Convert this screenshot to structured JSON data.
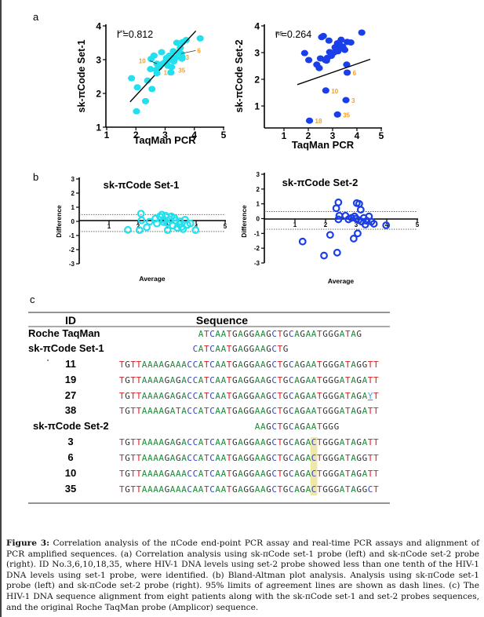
{
  "panels": {
    "a": "a",
    "b": "b",
    "c": "c"
  },
  "chart_data": [
    {
      "id": "a-left",
      "type": "scatter",
      "title": "",
      "xlabel": "TaqMan PCR",
      "ylabel": "sk-πCode Set-1",
      "xlim": [
        1,
        5
      ],
      "ylim": [
        1,
        4
      ],
      "xticks": [
        "1",
        "2",
        "3",
        "4",
        "5"
      ],
      "yticks": [
        "1",
        "2",
        "3",
        "4"
      ],
      "annotation": {
        "significance": "***",
        "r": "r =0.812"
      },
      "color": "#22E0EE",
      "regression": {
        "x": [
          1.8,
          4.05
        ],
        "y": [
          1.75,
          3.85
        ]
      },
      "points": [
        {
          "x": 2.02,
          "y": 1.47
        },
        {
          "x": 1.85,
          "y": 2.45
        },
        {
          "x": 2.05,
          "y": 2.18
        },
        {
          "x": 2.33,
          "y": 1.77
        },
        {
          "x": 2.55,
          "y": 2.13
        },
        {
          "x": 2.4,
          "y": 2.38
        },
        {
          "x": 2.5,
          "y": 2.72
        },
        {
          "x": 2.52,
          "y": 3.02
        },
        {
          "x": 2.62,
          "y": 3.12
        },
        {
          "x": 2.75,
          "y": 2.85
        },
        {
          "x": 2.8,
          "y": 2.78
        },
        {
          "x": 2.88,
          "y": 3.22
        },
        {
          "x": 2.92,
          "y": 2.88
        },
        {
          "x": 3.02,
          "y": 2.95
        },
        {
          "x": 3.1,
          "y": 2.82
        },
        {
          "x": 3.15,
          "y": 3.12
        },
        {
          "x": 3.22,
          "y": 2.78
        },
        {
          "x": 3.28,
          "y": 3.25
        },
        {
          "x": 3.35,
          "y": 3.05
        },
        {
          "x": 3.4,
          "y": 3.5
        },
        {
          "x": 3.45,
          "y": 3.2
        },
        {
          "x": 3.52,
          "y": 3.35
        },
        {
          "x": 3.58,
          "y": 3.08
        },
        {
          "x": 3.6,
          "y": 3.52
        },
        {
          "x": 3.72,
          "y": 3.58
        },
        {
          "x": 4.2,
          "y": 3.63
        },
        {
          "x": 3.3,
          "y": 2.95
        },
        {
          "x": 3.05,
          "y": 3.05
        },
        {
          "x": 2.7,
          "y": 2.7
        },
        {
          "x": 3.18,
          "y": 3.0
        }
      ],
      "labeled_points": [
        {
          "id": "6",
          "x": 3.55,
          "y": 3.18,
          "label_x": 4.1,
          "label_y": 3.2
        },
        {
          "id": "3",
          "x": 3.58,
          "y": 3.03,
          "label_x": 3.7,
          "label_y": 3.0
        },
        {
          "id": "10",
          "x": 2.72,
          "y": 2.88,
          "label_x": 2.15,
          "label_y": 2.9
        },
        {
          "id": "18",
          "x": 2.72,
          "y": 2.6,
          "label_x": 2.95,
          "label_y": 2.55
        },
        {
          "id": "35",
          "x": 3.2,
          "y": 2.62,
          "label_x": 3.45,
          "label_y": 2.62
        }
      ],
      "label_color": "#F0A030"
    },
    {
      "id": "a-right",
      "type": "scatter",
      "title": "",
      "xlabel": "TaqMan PCR",
      "ylabel": "sk-πCode Set-2",
      "xlim": [
        0.2,
        5
      ],
      "ylim": [
        0.2,
        4
      ],
      "xticks": [
        "1",
        "2",
        "3",
        "4",
        "5"
      ],
      "yticks": [
        "1",
        "2",
        "3",
        "4"
      ],
      "annotation": {
        "significance": "ns",
        "r": "r =0.264"
      },
      "color": "#1A3FE8",
      "regression": {
        "x": [
          1.55,
          4.55
        ],
        "y": [
          1.8,
          2.75
        ]
      },
      "points": [
        {
          "x": 1.85,
          "y": 2.98
        },
        {
          "x": 2.02,
          "y": 2.72
        },
        {
          "x": 2.35,
          "y": 2.55
        },
        {
          "x": 2.45,
          "y": 2.42
        },
        {
          "x": 2.5,
          "y": 2.78
        },
        {
          "x": 2.55,
          "y": 3.58
        },
        {
          "x": 2.62,
          "y": 3.62
        },
        {
          "x": 2.7,
          "y": 2.72
        },
        {
          "x": 2.78,
          "y": 2.8
        },
        {
          "x": 2.85,
          "y": 3.45
        },
        {
          "x": 2.88,
          "y": 3.02
        },
        {
          "x": 2.95,
          "y": 2.88
        },
        {
          "x": 3.05,
          "y": 3.0
        },
        {
          "x": 3.1,
          "y": 3.2
        },
        {
          "x": 3.15,
          "y": 3.05
        },
        {
          "x": 3.2,
          "y": 3.35
        },
        {
          "x": 3.25,
          "y": 3.15
        },
        {
          "x": 3.3,
          "y": 3.28
        },
        {
          "x": 3.35,
          "y": 3.48
        },
        {
          "x": 3.42,
          "y": 3.22
        },
        {
          "x": 3.5,
          "y": 3.1
        },
        {
          "x": 3.6,
          "y": 3.4
        },
        {
          "x": 3.75,
          "y": 3.38
        },
        {
          "x": 4.2,
          "y": 3.75
        },
        {
          "x": 3.58,
          "y": 2.55
        },
        {
          "x": 3.22,
          "y": 3.05
        },
        {
          "x": 2.75,
          "y": 2.7
        }
      ],
      "labeled_points": [
        {
          "id": "6",
          "x": 3.6,
          "y": 2.25
        },
        {
          "id": "10",
          "x": 2.72,
          "y": 1.58
        },
        {
          "id": "3",
          "x": 3.55,
          "y": 1.22
        },
        {
          "id": "35",
          "x": 3.2,
          "y": 0.68
        },
        {
          "id": "18",
          "x": 2.05,
          "y": 0.45
        }
      ],
      "label_color": "#F0A030"
    },
    {
      "id": "b-left",
      "type": "scatter",
      "title": "sk-πCode Set-1",
      "xlabel": "Average",
      "ylabel": "Difference",
      "xlim": [
        0,
        5
      ],
      "ylim": [
        -3,
        3
      ],
      "xticks": [
        "1",
        "2",
        "3",
        "4",
        "5"
      ],
      "yticks": [
        "3",
        "2",
        "1",
        "0",
        "-1",
        "-2",
        "-3"
      ],
      "limits_of_agreement": [
        0.48,
        -0.72
      ],
      "color": "#22E0EE",
      "points": [
        {
          "x": 1.65,
          "y": -0.6
        },
        {
          "x": 2.05,
          "y": -0.62
        },
        {
          "x": 2.1,
          "y": 0.55
        },
        {
          "x": 2.12,
          "y": 0.08
        },
        {
          "x": 2.3,
          "y": -0.42
        },
        {
          "x": 2.4,
          "y": -0.02
        },
        {
          "x": 2.6,
          "y": 0.2
        },
        {
          "x": 2.65,
          "y": -0.15
        },
        {
          "x": 2.75,
          "y": 0.35
        },
        {
          "x": 2.82,
          "y": 0.48
        },
        {
          "x": 2.9,
          "y": 0.1
        },
        {
          "x": 2.95,
          "y": 0.4
        },
        {
          "x": 3.0,
          "y": -0.1
        },
        {
          "x": 3.02,
          "y": -0.62
        },
        {
          "x": 3.1,
          "y": 0.15
        },
        {
          "x": 3.15,
          "y": 0.35
        },
        {
          "x": 3.2,
          "y": -0.3
        },
        {
          "x": 3.3,
          "y": 0.05
        },
        {
          "x": 3.35,
          "y": -0.45
        },
        {
          "x": 3.42,
          "y": -0.2
        },
        {
          "x": 3.5,
          "y": -0.4
        },
        {
          "x": 3.55,
          "y": -0.55
        },
        {
          "x": 3.62,
          "y": 0.12
        },
        {
          "x": 3.7,
          "y": -0.25
        },
        {
          "x": 3.8,
          "y": -0.15
        },
        {
          "x": 3.98,
          "y": -0.62
        },
        {
          "x": 2.88,
          "y": -0.05
        },
        {
          "x": 3.25,
          "y": 0.25
        },
        {
          "x": 3.45,
          "y": 0.0
        }
      ]
    },
    {
      "id": "b-right",
      "type": "scatter",
      "title": "sk-πCode Set-2",
      "xlabel": "Average",
      "ylabel": "Difference",
      "xlim": [
        0,
        5
      ],
      "ylim": [
        -3,
        3
      ],
      "xticks": [
        "1",
        "2",
        "3",
        "4",
        "5"
      ],
      "yticks": [
        "3",
        "2",
        "1",
        "0",
        "-1",
        "-2",
        "-3"
      ],
      "limits_of_agreement": [
        0.48,
        -0.72
      ],
      "color": "#1A3FE8",
      "points": [
        {
          "x": 1.25,
          "y": -1.55
        },
        {
          "x": 1.95,
          "y": -2.5
        },
        {
          "x": 2.15,
          "y": -1.1
        },
        {
          "x": 2.38,
          "y": -2.3
        },
        {
          "x": 2.35,
          "y": 0.7
        },
        {
          "x": 2.42,
          "y": 1.1
        },
        {
          "x": 2.45,
          "y": 0.2
        },
        {
          "x": 2.42,
          "y": -0.05
        },
        {
          "x": 2.65,
          "y": 0.2
        },
        {
          "x": 2.75,
          "y": -0.05
        },
        {
          "x": 2.85,
          "y": 0.05
        },
        {
          "x": 2.92,
          "y": -1.35
        },
        {
          "x": 2.95,
          "y": 0.15
        },
        {
          "x": 3.02,
          "y": 1.05
        },
        {
          "x": 3.05,
          "y": -1.0
        },
        {
          "x": 3.08,
          "y": -0.1
        },
        {
          "x": 3.1,
          "y": 1.0
        },
        {
          "x": 3.15,
          "y": 0.6
        },
        {
          "x": 3.18,
          "y": -0.2
        },
        {
          "x": 3.25,
          "y": 0.05
        },
        {
          "x": 3.3,
          "y": -0.4
        },
        {
          "x": 3.35,
          "y": -0.15
        },
        {
          "x": 3.42,
          "y": 0.15
        },
        {
          "x": 3.5,
          "y": -0.2
        },
        {
          "x": 3.58,
          "y": -0.35
        },
        {
          "x": 3.98,
          "y": -0.45
        },
        {
          "x": 3.0,
          "y": 0.0
        }
      ]
    }
  ],
  "alignment": {
    "header": {
      "id": "ID",
      "sequence": "Sequence"
    },
    "colors": {
      "A": "#1E8A3A",
      "T": "#D42020",
      "G": "#333333",
      "C": "#2E3FC8",
      "Y": "#3AA0E0"
    },
    "highlight_color": "#EEE9A8",
    "rows": [
      {
        "id": "Roche TaqMan",
        "kind": "group",
        "offset": 14,
        "seq": "ATCAATGAGGAAGCTGCAGAATGGGATAG",
        "mono": "A"
      },
      {
        "id": "sk-πCode Set-1",
        "kind": "group",
        "offset": 13,
        "seq": "CATCAATGAGGAAGCTG"
      },
      {
        "id": "11",
        "kind": "sample",
        "offset": 0,
        "seq": "TGTTAAAAGAAACCATCAATGAGGAAGCTGCAGAATGGGATAGGTT"
      },
      {
        "id": "19",
        "kind": "sample",
        "offset": 0,
        "seq": "TGTTAAAAGAGACCATCAATGAGGAAGCTGCAGAATGGGATAGATT"
      },
      {
        "id": "27",
        "kind": "sample",
        "offset": 0,
        "seq": "TGTTAAAAGAGACCATCAATGAGGAAGCTGCAGAATGGGATAGAYT"
      },
      {
        "id": "38",
        "kind": "sample",
        "offset": 0,
        "seq": "TGTTAAAAGATACCATCAATGAGGAAGCTGCAGAATGGGATAGATT"
      },
      {
        "id": "sk-πCode Set-2",
        "kind": "group",
        "offset": 24,
        "seq": "AAGCTGCAGAATGGG"
      },
      {
        "id": "3",
        "kind": "sample",
        "offset": 0,
        "seq": "TGTTAAAAGAGACCATCAATGAGGAAGCTGCAGACTGGGATAGATT"
      },
      {
        "id": "6",
        "kind": "sample",
        "offset": 0,
        "seq": "TGTTAAAAGAGACCATCAATGAGGAAGCTGCAGACTGGGATAGGTT"
      },
      {
        "id": "10",
        "kind": "sample",
        "offset": 0,
        "seq": "TGTTAAAAGAAACCATCAATGAGGAAGCTGCAGACTGGGATAGATT"
      },
      {
        "id": "35",
        "kind": "sample",
        "offset": 0,
        "seq": "TGTTAAAAGAAACAATCAATGAGGAAGCTGCAGACTGGGATAGGCT"
      }
    ],
    "highlight_column": 34
  },
  "caption": {
    "label": "Figure 3:",
    "text": " Correlation analysis of the πCode end-point PCR assay and real-time PCR assays and alignment of PCR amplified sequences. (a) Correlation analysis using sk-πCode set-1 probe (left) and sk-πCode set-2 probe (right). ID No.3,6,10,18,35, where HIV-1 DNA levels using set-2 probe showed less than one tenth of the HIV-1 DNA levels using set-1 probe, were identified. (b) Bland-Altman plot analysis. Analysis using sk-πCode set-1 probe (left) and sk-πCode set-2 probe (right). 95% limits of agreement lines are shown as dash lines. (c) The HIV-1 DNA sequence alignment from eight patients along with the sk-πCode set-1 and set-2 probes sequences, and the original Roche TaqMan probe (Amplicor) sequence."
  }
}
